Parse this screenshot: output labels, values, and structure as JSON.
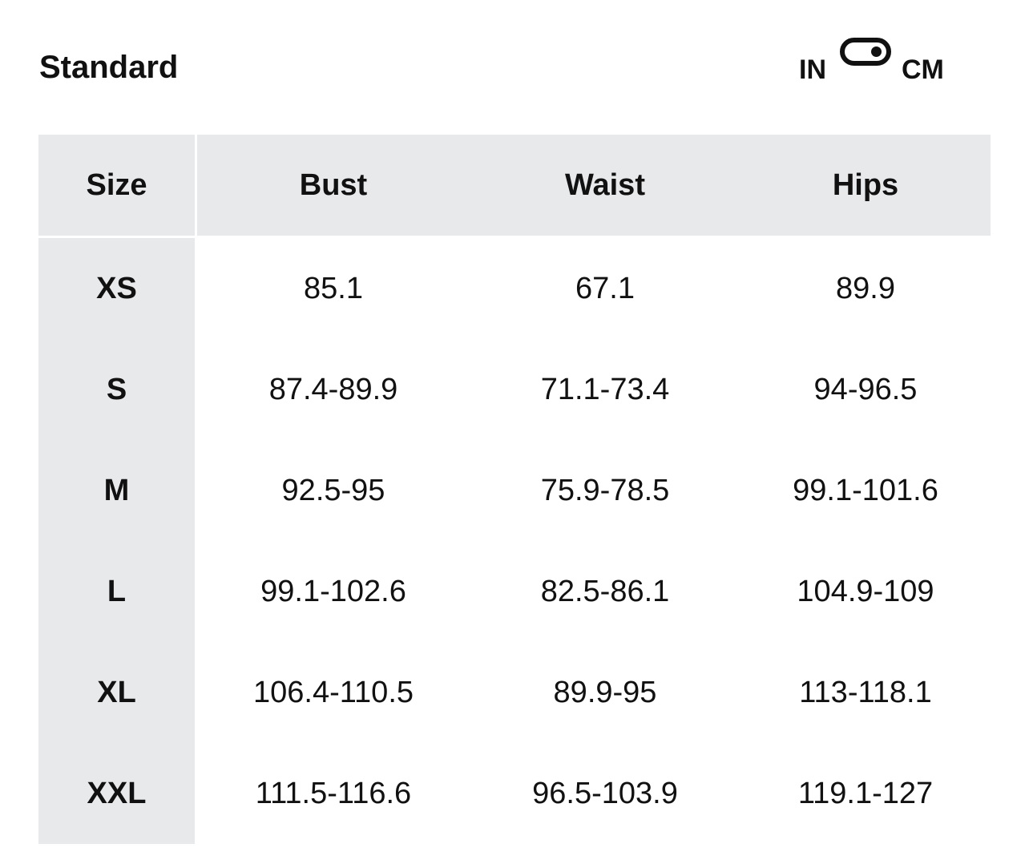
{
  "title": "Standard",
  "unit_toggle": {
    "left_label": "IN",
    "right_label": "CM",
    "selected": "CM"
  },
  "table": {
    "headers": [
      "Size",
      "Bust",
      "Waist",
      "Hips"
    ],
    "rows": [
      [
        "XS",
        "85.1",
        "67.1",
        "89.9"
      ],
      [
        "S",
        "87.4-89.9",
        "71.1-73.4",
        "94-96.5"
      ],
      [
        "M",
        "92.5-95",
        "75.9-78.5",
        "99.1-101.6"
      ],
      [
        "L",
        "99.1-102.6",
        "82.5-86.1",
        "104.9-109"
      ],
      [
        "XL",
        "106.4-110.5",
        "89.9-95",
        "113-118.1"
      ],
      [
        "XXL",
        "111.5-116.6",
        "96.5-103.9",
        "119.1-127"
      ]
    ]
  }
}
